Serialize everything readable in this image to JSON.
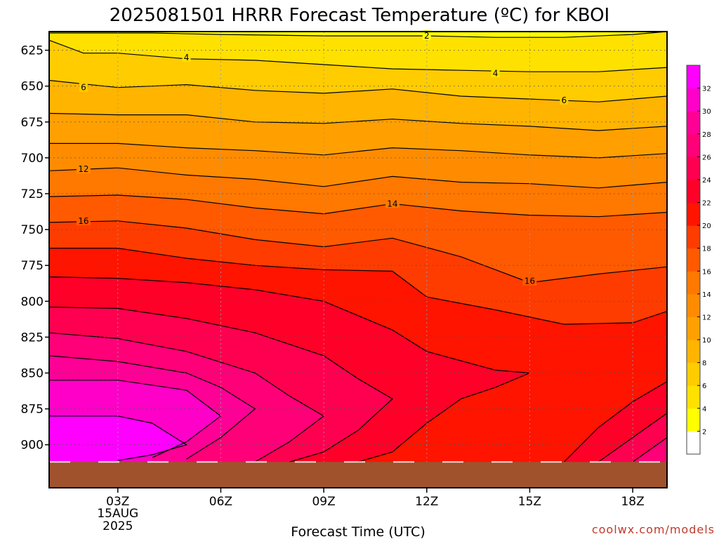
{
  "chart_data": {
    "type": "contour",
    "title": "2025081501 HRRR Forecast Temperature (ºC) for KBOI",
    "xlabel": "Forecast Time (UTC)",
    "ylabel": "",
    "credit": "coolwx.com/models",
    "x_ticks": [
      {
        "hour": 3,
        "label": "03Z",
        "sub1": "15AUG",
        "sub2": "2025"
      },
      {
        "hour": 6,
        "label": "06Z"
      },
      {
        "hour": 9,
        "label": "09Z"
      },
      {
        "hour": 12,
        "label": "12Z"
      },
      {
        "hour": 15,
        "label": "15Z"
      },
      {
        "hour": 18,
        "label": "18Z"
      }
    ],
    "xlim": [
      1,
      19
    ],
    "y_ticks": [
      625,
      650,
      675,
      700,
      725,
      750,
      775,
      800,
      825,
      850,
      875,
      900
    ],
    "ylim": [
      612,
      930
    ],
    "surface_pressure_hpa": 912,
    "colorbar": {
      "ticks": [
        2,
        4,
        6,
        8,
        10,
        12,
        14,
        16,
        18,
        20,
        22,
        24,
        26,
        28,
        30,
        32
      ],
      "colors": [
        "#ffffff",
        "#ffff00",
        "#ffe100",
        "#ffcc00",
        "#ffb400",
        "#ffa000",
        "#ff8c00",
        "#ff7800",
        "#ff5a00",
        "#ff3c00",
        "#ff1400",
        "#ff0028",
        "#ff0050",
        "#ff0078",
        "#ff0096",
        "#ff00c8",
        "#ff00ff"
      ]
    },
    "contour_labels": [
      {
        "text": "2",
        "hour": 12.0,
        "p": 615
      },
      {
        "text": "4",
        "hour": 5.0,
        "p": 630
      },
      {
        "text": "4",
        "hour": 14.0,
        "p": 641
      },
      {
        "text": "6",
        "hour": 2.0,
        "p": 651
      },
      {
        "text": "6",
        "hour": 16.0,
        "p": 660
      },
      {
        "text": "12",
        "hour": 2.0,
        "p": 708
      },
      {
        "text": "14",
        "hour": 11.0,
        "p": 732
      },
      {
        "text": "16",
        "hour": 2.0,
        "p": 744
      },
      {
        "text": "16",
        "hour": 15.0,
        "p": 786
      }
    ],
    "isotherms": [
      {
        "t": 2,
        "pts": [
          [
            1,
            613
          ],
          [
            4,
            613
          ],
          [
            6,
            614
          ],
          [
            9,
            615
          ],
          [
            12,
            615
          ],
          [
            14,
            616
          ],
          [
            16,
            616
          ],
          [
            18,
            614
          ],
          [
            19,
            612
          ]
        ]
      },
      {
        "t": 4,
        "pts": [
          [
            1,
            618
          ],
          [
            2,
            627
          ],
          [
            3,
            627
          ],
          [
            5,
            631
          ],
          [
            7,
            632
          ],
          [
            9,
            635
          ],
          [
            11,
            638
          ],
          [
            13,
            639
          ],
          [
            15,
            640
          ],
          [
            17,
            640
          ],
          [
            19,
            637
          ]
        ]
      },
      {
        "t": 6,
        "pts": [
          [
            1,
            646
          ],
          [
            3,
            651
          ],
          [
            5,
            649
          ],
          [
            7,
            653
          ],
          [
            9,
            655
          ],
          [
            11,
            652
          ],
          [
            13,
            657
          ],
          [
            15,
            659
          ],
          [
            17,
            661
          ],
          [
            19,
            657
          ]
        ]
      },
      {
        "t": 8,
        "pts": [
          [
            1,
            669
          ],
          [
            3,
            670
          ],
          [
            5,
            670
          ],
          [
            7,
            675
          ],
          [
            9,
            676
          ],
          [
            11,
            673
          ],
          [
            13,
            676
          ],
          [
            15,
            678
          ],
          [
            17,
            681
          ],
          [
            19,
            678
          ]
        ]
      },
      {
        "t": 10,
        "pts": [
          [
            1,
            690
          ],
          [
            3,
            690
          ],
          [
            5,
            693
          ],
          [
            7,
            695
          ],
          [
            9,
            698
          ],
          [
            11,
            693
          ],
          [
            13,
            695
          ],
          [
            15,
            698
          ],
          [
            17,
            700
          ],
          [
            19,
            697
          ]
        ]
      },
      {
        "t": 12,
        "pts": [
          [
            1,
            709
          ],
          [
            3,
            707
          ],
          [
            5,
            712
          ],
          [
            7,
            715
          ],
          [
            9,
            720
          ],
          [
            11,
            713
          ],
          [
            13,
            717
          ],
          [
            15,
            718
          ],
          [
            17,
            721
          ],
          [
            19,
            717
          ]
        ]
      },
      {
        "t": 14,
        "pts": [
          [
            1,
            727
          ],
          [
            3,
            726
          ],
          [
            5,
            729
          ],
          [
            7,
            735
          ],
          [
            9,
            739
          ],
          [
            11,
            732
          ],
          [
            13,
            737
          ],
          [
            15,
            740
          ],
          [
            17,
            741
          ],
          [
            19,
            738
          ]
        ]
      },
      {
        "t": 16,
        "pts": [
          [
            1,
            745
          ],
          [
            3,
            744
          ],
          [
            5,
            749
          ],
          [
            7,
            757
          ],
          [
            9,
            762
          ],
          [
            11,
            756
          ],
          [
            13,
            769
          ],
          [
            15,
            787
          ],
          [
            17,
            781
          ],
          [
            19,
            776
          ]
        ]
      },
      {
        "t": 18,
        "pts": [
          [
            1,
            763
          ],
          [
            3,
            763
          ],
          [
            5,
            770
          ],
          [
            7,
            775
          ],
          [
            9,
            778
          ],
          [
            11,
            779
          ],
          [
            12,
            797
          ],
          [
            14,
            806
          ],
          [
            16,
            816
          ],
          [
            18,
            815
          ],
          [
            19,
            807
          ]
        ]
      },
      {
        "t": 20,
        "pts": [
          [
            1,
            783
          ],
          [
            3,
            784
          ],
          [
            5,
            787
          ],
          [
            7,
            792
          ],
          [
            9,
            800
          ],
          [
            11,
            820
          ],
          [
            12,
            835
          ],
          [
            14,
            848
          ],
          [
            15,
            850
          ],
          [
            14,
            860
          ],
          [
            13,
            868
          ],
          [
            12,
            885
          ],
          [
            11,
            905
          ],
          [
            10,
            912
          ]
        ]
      },
      {
        "t": 22,
        "pts": [
          [
            1,
            804
          ],
          [
            3,
            805
          ],
          [
            5,
            812
          ],
          [
            7,
            822
          ],
          [
            9,
            838
          ],
          [
            10,
            854
          ],
          [
            11,
            868
          ],
          [
            10,
            890
          ],
          [
            9,
            905
          ],
          [
            8,
            912
          ]
        ]
      },
      {
        "t": 24,
        "pts": [
          [
            1,
            822
          ],
          [
            3,
            826
          ],
          [
            5,
            835
          ],
          [
            7,
            850
          ],
          [
            8,
            866
          ],
          [
            9,
            880
          ],
          [
            8,
            898
          ],
          [
            7,
            912
          ]
        ]
      },
      {
        "t": 26,
        "pts": [
          [
            1,
            838
          ],
          [
            3,
            842
          ],
          [
            5,
            850
          ],
          [
            6,
            860
          ],
          [
            7,
            875
          ],
          [
            6,
            895
          ],
          [
            5,
            910
          ]
        ]
      },
      {
        "t": 28,
        "pts": [
          [
            1,
            855
          ],
          [
            3,
            855
          ],
          [
            5,
            862
          ],
          [
            6,
            880
          ],
          [
            5,
            898
          ],
          [
            4,
            909
          ]
        ]
      },
      {
        "t": 30,
        "pts": [
          [
            1,
            880
          ],
          [
            3,
            880
          ],
          [
            4,
            885
          ],
          [
            5,
            900
          ],
          [
            4,
            907
          ],
          [
            3,
            911
          ]
        ]
      },
      {
        "t": 20,
        "pts": [
          [
            16,
            912
          ],
          [
            17,
            888
          ],
          [
            18,
            870
          ],
          [
            19,
            856
          ]
        ]
      },
      {
        "t": 22,
        "pts": [
          [
            17,
            912
          ],
          [
            18,
            895
          ],
          [
            19,
            878
          ]
        ]
      },
      {
        "t": 24,
        "pts": [
          [
            18,
            912
          ],
          [
            19,
            895
          ]
        ]
      }
    ]
  }
}
